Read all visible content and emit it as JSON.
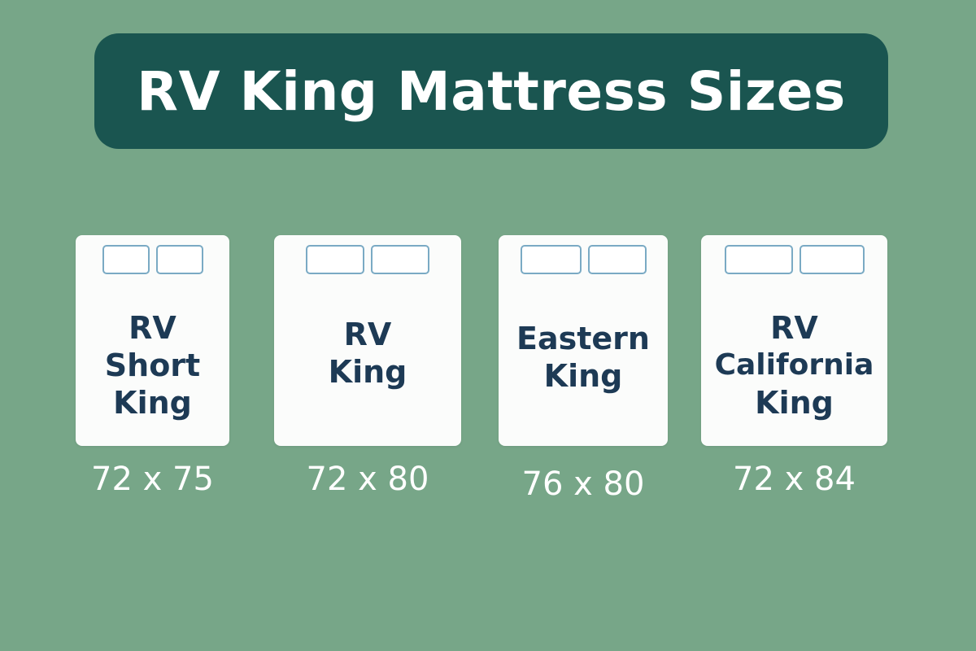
{
  "title": "RV King Mattress Sizes",
  "mattresses": [
    {
      "line1": "RV",
      "line2": "Short",
      "line3": "King",
      "size": "72 x 75"
    },
    {
      "line1": "RV",
      "line2": "King",
      "size": "72 x 80"
    },
    {
      "line1": "Eastern",
      "line2": "King",
      "size": "76 x 80"
    },
    {
      "line1": "RV",
      "line2": "California",
      "line3": "King",
      "size": "72 x 84"
    }
  ],
  "colors": {
    "background": "#77a688",
    "banner": "#1a5550",
    "mattress": "#fbfcfb",
    "label_text": "#1d3a55",
    "pillow_outline": "#7aaac4"
  }
}
